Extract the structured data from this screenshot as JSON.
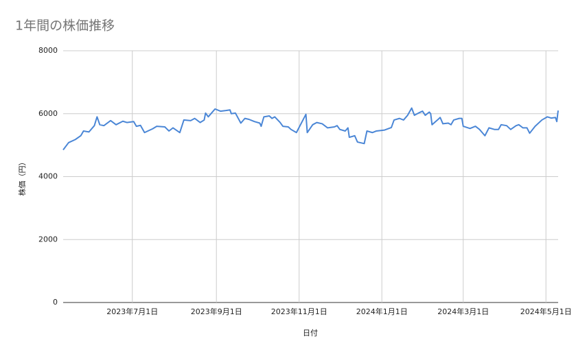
{
  "chart_data": {
    "type": "line",
    "title": "1年間の株価推移",
    "xlabel": "日付",
    "ylabel": "株価（円）",
    "x": [
      "2023-05-11",
      "2023-05-15",
      "2023-05-20",
      "2023-05-24",
      "2023-05-26",
      "2023-05-30",
      "2023-06-03",
      "2023-06-05",
      "2023-06-07",
      "2023-06-10",
      "2023-06-15",
      "2023-06-19",
      "2023-06-24",
      "2023-06-27",
      "2023-07-02",
      "2023-07-04",
      "2023-07-07",
      "2023-07-10",
      "2023-07-16",
      "2023-07-19",
      "2023-07-25",
      "2023-07-28",
      "2023-07-31",
      "2023-08-05",
      "2023-08-08",
      "2023-08-13",
      "2023-08-16",
      "2023-08-20",
      "2023-08-23",
      "2023-08-24",
      "2023-08-26",
      "2023-08-29",
      "2023-08-31",
      "2023-09-04",
      "2023-09-08",
      "2023-09-11",
      "2023-09-12",
      "2023-09-15",
      "2023-09-19",
      "2023-09-22",
      "2023-09-25",
      "2023-09-29",
      "2023-10-03",
      "2023-10-04",
      "2023-10-06",
      "2023-10-10",
      "2023-10-12",
      "2023-10-14",
      "2023-10-18",
      "2023-10-20",
      "2023-10-24",
      "2023-10-26",
      "2023-10-30",
      "2023-11-06",
      "2023-11-07",
      "2023-11-11",
      "2023-11-14",
      "2023-11-18",
      "2023-11-22",
      "2023-11-27",
      "2023-11-29",
      "2023-12-01",
      "2023-12-05",
      "2023-12-07",
      "2023-12-08",
      "2023-12-12",
      "2023-12-14",
      "2023-12-19",
      "2023-12-21",
      "2023-12-25",
      "2023-12-28",
      "2024-01-03",
      "2024-01-08",
      "2024-01-10",
      "2024-01-14",
      "2024-01-17",
      "2024-01-20",
      "2024-01-23",
      "2024-01-25",
      "2024-01-28",
      "2024-01-31",
      "2024-02-02",
      "2024-02-05",
      "2024-02-06",
      "2024-02-07",
      "2024-02-11",
      "2024-02-13",
      "2024-02-15",
      "2024-02-19",
      "2024-02-21",
      "2024-02-23",
      "2024-02-27",
      "2024-02-29",
      "2024-03-01",
      "2024-03-06",
      "2024-03-10",
      "2024-03-13",
      "2024-03-15",
      "2024-03-17",
      "2024-03-20",
      "2024-03-24",
      "2024-03-27",
      "2024-03-29",
      "2024-04-02",
      "2024-04-05",
      "2024-04-09",
      "2024-04-11",
      "2024-04-14",
      "2024-04-17",
      "2024-04-19",
      "2024-04-23",
      "2024-04-28",
      "2024-05-02",
      "2024-05-05",
      "2024-05-08",
      "2024-05-09",
      "2024-05-10"
    ],
    "series": [
      {
        "name": "株価",
        "color": "#4a86d6",
        "values": [
          4850,
          5080,
          5180,
          5300,
          5450,
          5420,
          5620,
          5900,
          5650,
          5620,
          5780,
          5650,
          5760,
          5720,
          5750,
          5600,
          5630,
          5400,
          5520,
          5600,
          5580,
          5450,
          5550,
          5400,
          5800,
          5780,
          5850,
          5720,
          5800,
          6020,
          5900,
          6050,
          6150,
          6080,
          6100,
          6120,
          6000,
          6020,
          5700,
          5850,
          5820,
          5750,
          5700,
          5600,
          5900,
          5930,
          5850,
          5900,
          5720,
          5600,
          5580,
          5500,
          5400,
          5980,
          5400,
          5650,
          5720,
          5680,
          5550,
          5580,
          5620,
          5500,
          5450,
          5550,
          5250,
          5300,
          5100,
          5050,
          5450,
          5400,
          5450,
          5480,
          5560,
          5800,
          5850,
          5800,
          5950,
          6180,
          5950,
          6020,
          6080,
          5950,
          6050,
          6000,
          5650,
          5800,
          5880,
          5680,
          5700,
          5650,
          5800,
          5850,
          5850,
          5600,
          5530,
          5600,
          5500,
          5400,
          5300,
          5550,
          5500,
          5500,
          5650,
          5620,
          5500,
          5620,
          5650,
          5550,
          5550,
          5380,
          5600,
          5800,
          5900,
          5860,
          5880,
          5750,
          6100
        ]
      }
    ],
    "xlim": [
      "2023-05-11",
      "2024-05-10"
    ],
    "xticks": [
      {
        "value": "2023-07-01",
        "label": "2023年7月1日"
      },
      {
        "value": "2023-09-01",
        "label": "2023年9月1日"
      },
      {
        "value": "2023-11-01",
        "label": "2023年11月1日"
      },
      {
        "value": "2024-01-01",
        "label": "2024年1月1日"
      },
      {
        "value": "2024-03-01",
        "label": "2024年3月1日"
      },
      {
        "value": "2024-05-01",
        "label": "2024年5月1日"
      }
    ],
    "ylim": [
      0,
      8000
    ],
    "yticks": [
      0,
      2000,
      4000,
      6000,
      8000
    ],
    "grid": true
  }
}
